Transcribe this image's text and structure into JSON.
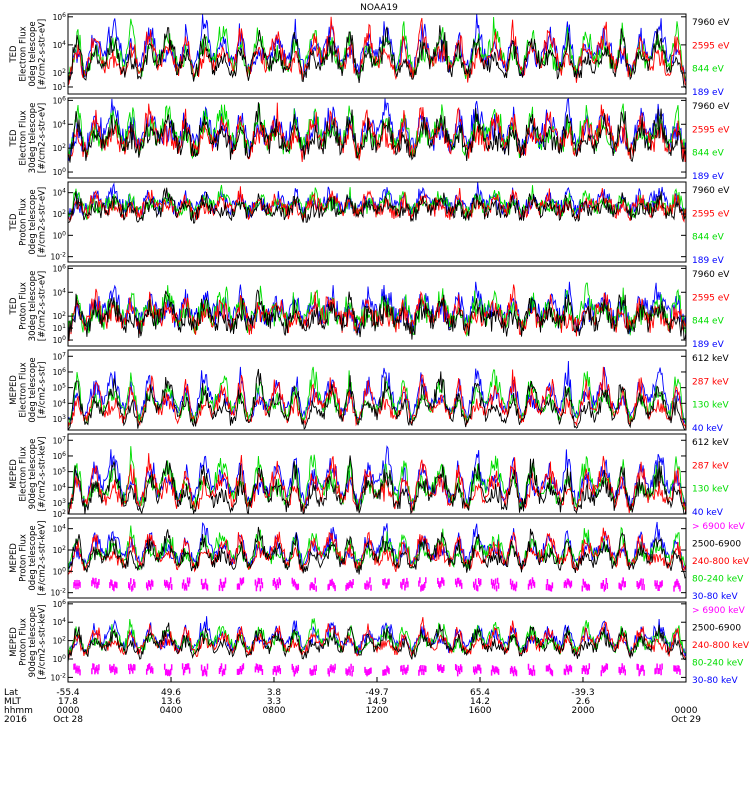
{
  "chart_data": {
    "type": "line",
    "title": "NOAA19",
    "panels": [
      {
        "ylabel_lines": [
          "TED",
          "Electron Flux",
          "0deg telescope",
          "[#/cm2-s-str-eV]"
        ],
        "ticks": [
          "10^6",
          "10^4",
          "10^2",
          "10^1"
        ],
        "tick_exps": [
          6,
          4,
          2,
          1
        ],
        "ylim_exp": [
          0.5,
          6.2
        ],
        "base_exp": 1.7,
        "noise_exp": 0.5,
        "peak_exp": 6,
        "series": [
          {
            "name": "7960 eV",
            "color": "#000000"
          },
          {
            "name": "2595 eV",
            "color": "#ff0000"
          },
          {
            "name": "844 eV",
            "color": "#00dd00"
          },
          {
            "name": "189 eV",
            "color": "#0000ff"
          }
        ]
      },
      {
        "ylabel_lines": [
          "TED",
          "Electron Flux",
          "30deg telescope",
          "[#/cm2-s-str-eV]"
        ],
        "ticks": [
          "10^6",
          "10^4",
          "10^2",
          "10^0"
        ],
        "tick_exps": [
          6,
          4,
          2,
          0
        ],
        "ylim_exp": [
          -0.5,
          6.2
        ],
        "base_exp": 1.5,
        "noise_exp": 0.8,
        "peak_exp": 6,
        "series": [
          {
            "name": "7960 eV",
            "color": "#000000"
          },
          {
            "name": "2595 eV",
            "color": "#ff0000"
          },
          {
            "name": "844 eV",
            "color": "#00dd00"
          },
          {
            "name": "189 eV",
            "color": "#0000ff"
          }
        ]
      },
      {
        "ylabel_lines": [
          "TED",
          "Proton Flux",
          "0deg telescope",
          "[#/cm2-s-str-eV]"
        ],
        "ticks": [
          "10^4",
          "10^2",
          "10^0",
          "10^-2"
        ],
        "tick_exps": [
          4,
          2,
          0,
          -2
        ],
        "ylim_exp": [
          -2.5,
          5
        ],
        "base_exp": 2,
        "noise_exp": 0.7,
        "peak_exp": 4.5,
        "series": [
          {
            "name": "7960 eV",
            "color": "#000000"
          },
          {
            "name": "2595 eV",
            "color": "#ff0000"
          },
          {
            "name": "844 eV",
            "color": "#00dd00"
          },
          {
            "name": "189 eV",
            "color": "#0000ff"
          }
        ]
      },
      {
        "ylabel_lines": [
          "TED",
          "Proton Flux",
          "30deg telescope",
          "[#/cm2-s-str-eV]"
        ],
        "ticks": [
          "10^6",
          "10^4",
          "10^2",
          "10^1",
          "10^0"
        ],
        "tick_exps": [
          6,
          4,
          2,
          1,
          0
        ],
        "ylim_exp": [
          -0.5,
          6.2
        ],
        "base_exp": 1,
        "noise_exp": 0.9,
        "peak_exp": 4.5,
        "series": [
          {
            "name": "7960 eV",
            "color": "#000000"
          },
          {
            "name": "2595 eV",
            "color": "#ff0000"
          },
          {
            "name": "844 eV",
            "color": "#00dd00"
          },
          {
            "name": "189 eV",
            "color": "#0000ff"
          }
        ]
      },
      {
        "ylabel_lines": [
          "MEPED",
          "Electron Flux",
          "0deg telescope",
          "[#/cm2-s-str]"
        ],
        "ticks": [
          "10^7",
          "10^6",
          "10^5",
          "10^4",
          "10^3"
        ],
        "tick_exps": [
          7,
          6,
          5,
          4,
          3
        ],
        "ylim_exp": [
          2.3,
          7.4
        ],
        "base_exp": 2.7,
        "noise_exp": 0.3,
        "peak_exp": 6.5,
        "series": [
          {
            "name": "612 keV",
            "color": "#000000"
          },
          {
            "name": "287 keV",
            "color": "#ff0000"
          },
          {
            "name": "130 keV",
            "color": "#00dd00"
          },
          {
            "name": "40 keV",
            "color": "#0000ff"
          }
        ]
      },
      {
        "ylabel_lines": [
          "MEPED",
          "Electron Flux",
          "90deg telescope",
          "[#/cm2-s-str-keV]"
        ],
        "ticks": [
          "10^7",
          "10^6",
          "10^5",
          "10^4",
          "10^3",
          "10^2"
        ],
        "tick_exps": [
          7,
          6,
          5,
          4,
          3,
          2
        ],
        "ylim_exp": [
          2.3,
          7.4
        ],
        "base_exp": 2.6,
        "noise_exp": 0.4,
        "peak_exp": 6.5,
        "series": [
          {
            "name": "612 keV",
            "color": "#000000"
          },
          {
            "name": "287 keV",
            "color": "#ff0000"
          },
          {
            "name": "130 keV",
            "color": "#00dd00"
          },
          {
            "name": "40 keV",
            "color": "#0000ff"
          }
        ]
      },
      {
        "ylabel_lines": [
          "MEPED",
          "Proton Flux",
          "0deg telescope",
          "[#/cm2-s-str-keV]"
        ],
        "ticks": [
          "10^4",
          "10^2",
          "10^0",
          "10^-2"
        ],
        "tick_exps": [
          4,
          2,
          0,
          -2
        ],
        "ylim_exp": [
          -2.5,
          5
        ],
        "base_exp": 0.2,
        "noise_exp": 0.5,
        "peak_exp": 4.5,
        "series": [
          {
            "name": "> 6900 keV",
            "color": "#ff00ff"
          },
          {
            "name": "2500-6900",
            "color": "#000000"
          },
          {
            "name": "240-800 keV",
            "color": "#ff0000"
          },
          {
            "name": "80-240 keV",
            "color": "#00dd00"
          },
          {
            "name": "30-80 keV",
            "color": "#0000ff"
          }
        ]
      },
      {
        "ylabel_lines": [
          "MEPED",
          "Proton Flux",
          "90deg telescope",
          "[#/cm2-s-str-keV]"
        ],
        "ticks": [
          "10^6",
          "10^4",
          "10^2",
          "10^0",
          "10^-2"
        ],
        "tick_exps": [
          6,
          4,
          2,
          0,
          -2
        ],
        "ylim_exp": [
          -2.5,
          6.2
        ],
        "base_exp": 0.5,
        "noise_exp": 0.5,
        "peak_exp": 4.5,
        "series": [
          {
            "name": "> 6900 keV",
            "color": "#ff00ff"
          },
          {
            "name": "2500-6900",
            "color": "#000000"
          },
          {
            "name": "240-800 keV",
            "color": "#ff0000"
          },
          {
            "name": "80-240 keV",
            "color": "#00dd00"
          },
          {
            "name": "30-80 keV",
            "color": "#0000ff"
          }
        ]
      }
    ],
    "x_axis": {
      "row_labels": [
        "Lat",
        "MLT",
        "hhmm",
        "2016"
      ],
      "columns": [
        {
          "lat": "-55.4",
          "mlt": "17.8",
          "hhmm": "0000",
          "date": "Oct 28",
          "frac": 0.0
        },
        {
          "lat": "49.6",
          "mlt": "13.6",
          "hhmm": "0400",
          "date": "",
          "frac": 0.1667
        },
        {
          "lat": "3.8",
          "mlt": "3.3",
          "hhmm": "0800",
          "date": "",
          "frac": 0.3333
        },
        {
          "lat": "-49.7",
          "mlt": "14.9",
          "hhmm": "1200",
          "date": "",
          "frac": 0.5
        },
        {
          "lat": "65.4",
          "mlt": "14.2",
          "hhmm": "1600",
          "date": "",
          "frac": 0.6667
        },
        {
          "lat": "-39.3",
          "mlt": "2.6",
          "hhmm": "2000",
          "date": "",
          "frac": 0.8333
        },
        {
          "lat": "",
          "mlt": "",
          "hhmm": "0000",
          "date": "Oct 29",
          "frac": 1.0
        }
      ]
    },
    "event_count": 34,
    "grid": false
  }
}
